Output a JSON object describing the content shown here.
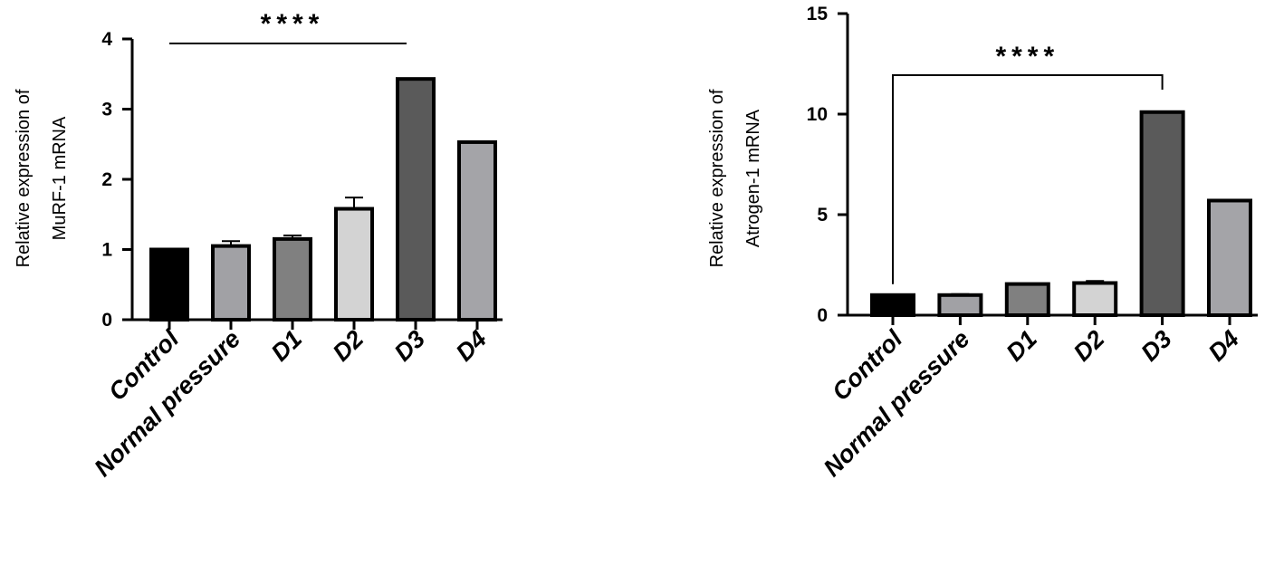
{
  "chart_data": [
    {
      "type": "bar",
      "categories": [
        "Control",
        "Normal pressure",
        "D1",
        "D2",
        "D3",
        "D4"
      ],
      "values": [
        1.0,
        1.05,
        1.15,
        1.58,
        3.43,
        2.53
      ],
      "error_bars": [
        0,
        0.07,
        0.05,
        0.16,
        0,
        0
      ],
      "bar_colors": [
        "#000000",
        "#a1a1a5",
        "#808080",
        "#d3d3d3",
        "#5a5a5a",
        "#a4a4a8"
      ],
      "xlabel": "",
      "ylabel": [
        "Relative expression of",
        "MuRF-1 mRNA"
      ],
      "ylim": [
        0,
        4
      ],
      "yticks": [
        0,
        1,
        2,
        3,
        4
      ],
      "grid": false,
      "significance": {
        "from": "Control",
        "to": "D3",
        "label": "****",
        "style": "flat"
      }
    },
    {
      "type": "bar",
      "categories": [
        "Control",
        "Normal pressure",
        "D1",
        "D2",
        "D3",
        "D4"
      ],
      "values": [
        1.0,
        1.0,
        1.55,
        1.6,
        10.1,
        5.7
      ],
      "error_bars": [
        0,
        0.05,
        0,
        0.1,
        0,
        0
      ],
      "bar_colors": [
        "#000000",
        "#a1a1a5",
        "#808080",
        "#d3d3d3",
        "#5a5a5a",
        "#a4a4a8"
      ],
      "xlabel": "",
      "ylabel": [
        "Relative expression of",
        "Atrogen-1 mRNA"
      ],
      "ylim": [
        0,
        15
      ],
      "yticks": [
        0,
        5,
        10,
        15
      ],
      "grid": false,
      "significance": {
        "from": "Control",
        "to": "D3",
        "label": "****",
        "style": "bracket"
      }
    }
  ]
}
